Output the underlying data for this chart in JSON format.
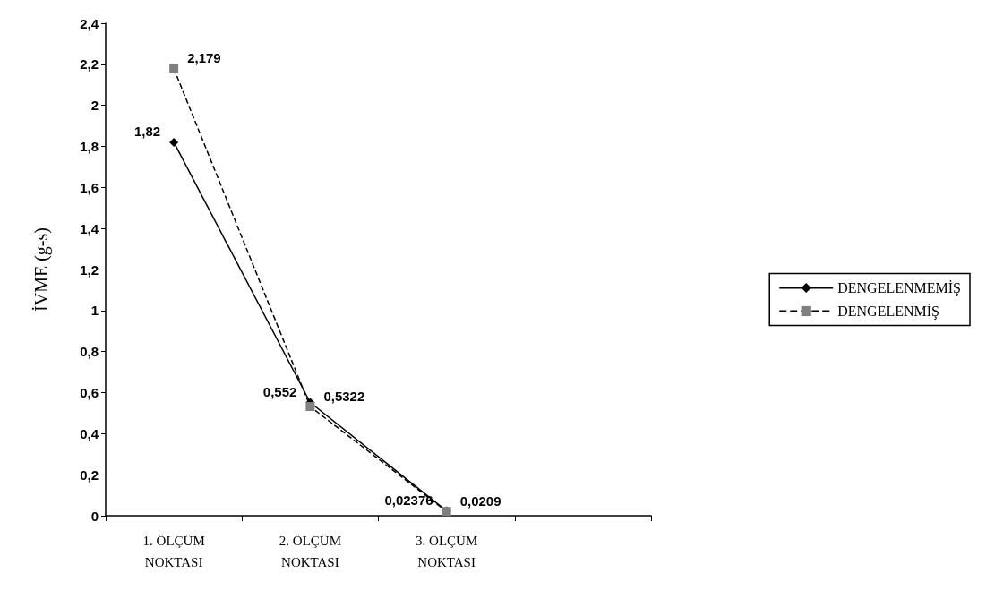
{
  "chart_data": {
    "type": "line",
    "ylabel": "İVME (g-s)",
    "categories": [
      "1. ÖLÇÜM\nNOKTASI",
      "2. ÖLÇÜM\nNOKTASI",
      "3. ÖLÇÜM\nNOKTASI",
      null
    ],
    "ylim": [
      0,
      2.4
    ],
    "yticks": [
      0,
      {
        "value": 0.2,
        "label": "0,2"
      },
      {
        "value": 0.4,
        "label": "0,4"
      },
      {
        "value": 0.6,
        "label": "0,6"
      },
      {
        "value": 0.8,
        "label": "0,8"
      },
      1,
      {
        "value": 1.2,
        "label": "1,2"
      },
      {
        "value": 1.4,
        "label": "1,4"
      },
      {
        "value": 1.6,
        "label": "1,6"
      },
      {
        "value": 1.8,
        "label": "1,8"
      },
      2,
      {
        "value": 2.2,
        "label": "2,2"
      },
      {
        "value": 2.4,
        "label": "2,4"
      }
    ],
    "grid": false,
    "legend": "right",
    "series": [
      {
        "name": "DENGELENMEMİŞ",
        "color": "#000000",
        "marker": "diamond",
        "line_style": "solid",
        "values": [
          1.82,
          0.552,
          0.02376,
          null
        ],
        "value_labels": [
          "1,82",
          "0,552",
          "0,02376",
          null
        ]
      },
      {
        "name": "DENGELENMİŞ",
        "color": "#808080",
        "marker": "square",
        "line_style": "dashed",
        "values": [
          2.179,
          0.5322,
          0.0209,
          null
        ],
        "value_labels": [
          "2,179",
          "0,5322",
          "0,0209",
          null
        ]
      }
    ]
  }
}
